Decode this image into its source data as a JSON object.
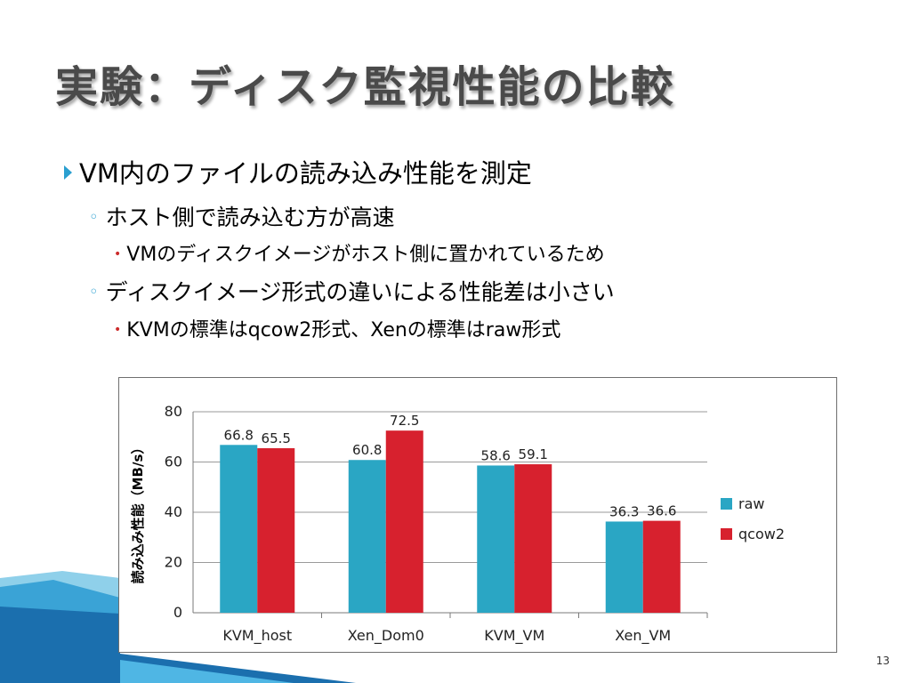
{
  "slide": {
    "title": "実験：ディスク監視性能の比較",
    "page_number": "13"
  },
  "bullets": [
    {
      "level": 1,
      "text": "VM内のファイルの読み込み性能を測定"
    },
    {
      "level": 2,
      "text": "ホスト側で読み込む方が高速"
    },
    {
      "level": 3,
      "text": "VMのディスクイメージがホスト側に置かれているため"
    },
    {
      "level": 2,
      "text": "ディスクイメージ形式の違いによる性能差は小さい"
    },
    {
      "level": 3,
      "text": "KVMの標準はqcow2形式、Xenの標準はraw形式"
    }
  ],
  "chart_data": {
    "type": "bar",
    "categories": [
      "KVM_host",
      "Xen_Dom0",
      "KVM_VM",
      "Xen_VM"
    ],
    "series": [
      {
        "name": "raw",
        "values": [
          66.8,
          60.8,
          58.6,
          36.3
        ],
        "color": "#2aa6c4"
      },
      {
        "name": "qcow2",
        "values": [
          65.5,
          72.5,
          59.1,
          36.6
        ],
        "color": "#d7212e"
      }
    ],
    "ylabel": "読み込み性能（MB/s）",
    "ylim": [
      0,
      80
    ],
    "yticks": [
      0,
      20,
      40,
      60,
      80
    ],
    "grid": true,
    "legend_position": "right"
  }
}
